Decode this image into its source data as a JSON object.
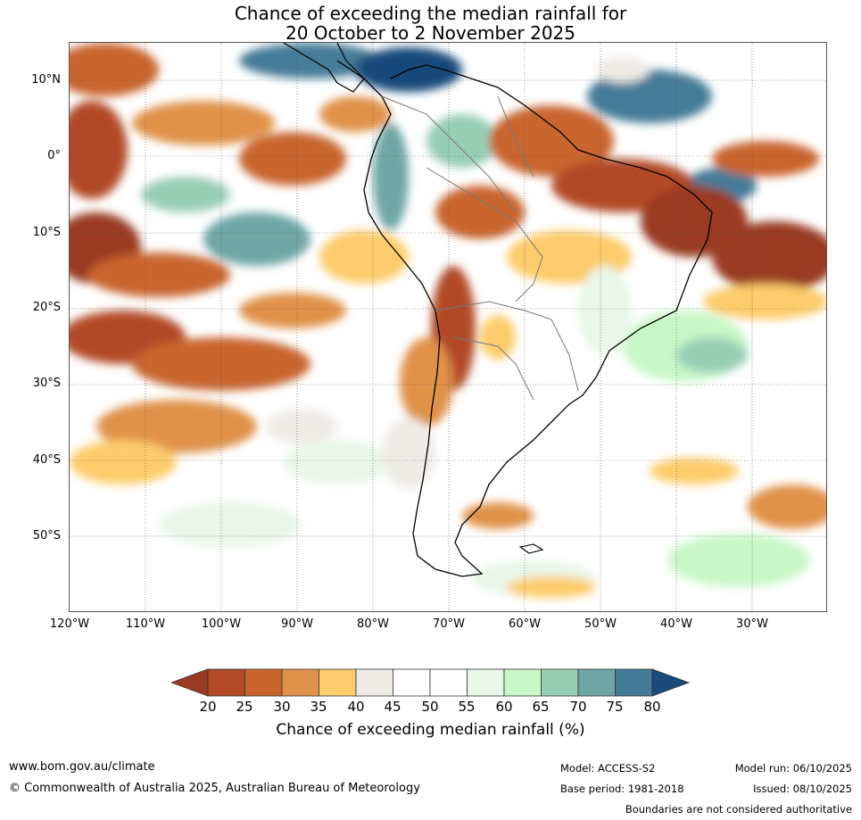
{
  "title": {
    "line1": "Chance of exceeding the median rainfall for",
    "line2": "20 October to 2 November 2025"
  },
  "map": {
    "lat_labels": [
      "10°N",
      "0°",
      "10°S",
      "20°S",
      "30°S",
      "40°S",
      "50°S"
    ],
    "lon_labels": [
      "120°W",
      "110°W",
      "100°W",
      "90°W",
      "80°W",
      "70°W",
      "60°W",
      "50°W",
      "40°W",
      "30°W"
    ]
  },
  "colorbar": {
    "ticks": [
      "20",
      "25",
      "30",
      "35",
      "40",
      "45",
      "50",
      "55",
      "60",
      "65",
      "70",
      "75",
      "80"
    ],
    "colors": [
      "#9a3a22",
      "#b24a26",
      "#c9652f",
      "#e0924a",
      "#fdcc6c",
      "#eeebe6",
      "#ffffff",
      "#ffffff",
      "#e9f6e9",
      "#c8f7c8",
      "#99ceb6",
      "#6ea6a6",
      "#447c98",
      "#184a7a"
    ],
    "label": "Chance of exceeding median rainfall (%)"
  },
  "footer": {
    "url": "www.bom.gov.au/climate",
    "copyright": "© Commonwealth of Australia 2025, Australian Bureau of Meteorology",
    "model": "Model: ACCESS-S2",
    "base_period": "Base period: 1981-2018",
    "model_run": "Model run: 06/10/2025",
    "issued": "Issued: 08/10/2025",
    "disclaimer": "Boundaries are not considered authoritative"
  }
}
